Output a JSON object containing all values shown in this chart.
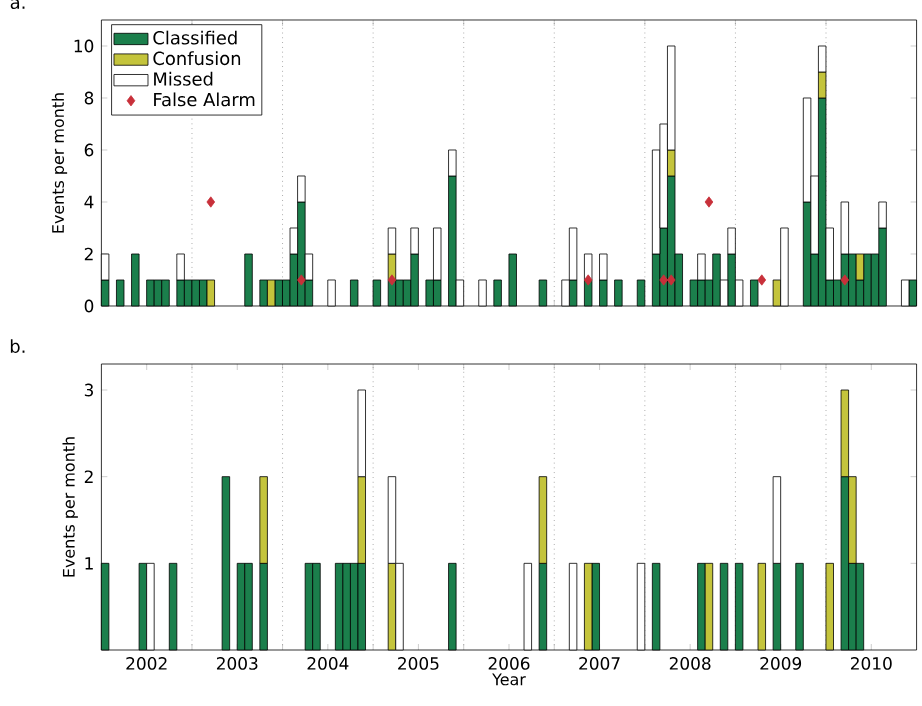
{
  "chart_data": [
    {
      "type": "bar",
      "title": "a.",
      "ylabel": "Events per month",
      "stacked": true,
      "legend": "top left",
      "tick_labels": "y",
      "xlim": [
        "2002-01-01",
        "2011-01-01"
      ],
      "ylim": [
        0,
        11
      ],
      "xticks": [
        {
          "value": "2003-01-01",
          "label": null
        },
        {
          "value": "2004-01-01",
          "label": null
        },
        {
          "value": "2005-01-01",
          "label": null
        },
        {
          "value": "2006-01-01",
          "label": null
        },
        {
          "value": "2007-01-01",
          "label": null
        },
        {
          "value": "2008-01-01",
          "label": null
        },
        {
          "value": "2009-01-01",
          "label": null
        },
        {
          "value": "2010-01-01",
          "label": null
        }
      ],
      "yticks": [
        0,
        2,
        4,
        6,
        8,
        10
      ],
      "ref_lines": [
        {
          "axis": "x",
          "value": "2003-01-01",
          "color": "#808080",
          "line_style": "dotted"
        },
        {
          "axis": "x",
          "value": "2004-01-01",
          "color": "#808080",
          "line_style": "dotted"
        },
        {
          "axis": "x",
          "value": "2005-01-01",
          "color": "#808080",
          "line_style": "dotted"
        },
        {
          "axis": "x",
          "value": "2006-01-01",
          "color": "#808080",
          "line_style": "dotted"
        },
        {
          "axis": "x",
          "value": "2007-01-01",
          "color": "#808080",
          "line_style": "dotted"
        },
        {
          "axis": "x",
          "value": "2008-01-01",
          "color": "#808080",
          "line_style": "dotted"
        },
        {
          "axis": "x",
          "value": "2009-01-01",
          "color": "#808080",
          "line_style": "dotted"
        },
        {
          "axis": "x",
          "value": "2010-01-01",
          "color": "#808080",
          "line_style": "dotted"
        }
      ],
      "x": [
        "2002-01-16",
        "2002-03-16",
        "2002-05-16",
        "2002-07-16",
        "2002-08-16",
        "2002-09-16",
        "2002-11-16",
        "2002-12-16",
        "2003-01-16",
        "2003-02-16",
        "2003-03-16",
        "2003-08-16",
        "2003-10-16",
        "2003-11-16",
        "2003-12-16",
        "2004-01-16",
        "2004-02-16",
        "2004-03-16",
        "2004-04-16",
        "2004-07-16",
        "2004-10-16",
        "2005-01-16",
        "2005-03-16",
        "2005-04-16",
        "2005-05-16",
        "2005-06-16",
        "2005-08-16",
        "2005-09-16",
        "2005-11-16",
        "2005-12-16",
        "2006-03-16",
        "2006-05-16",
        "2006-07-16",
        "2006-11-16",
        "2007-02-16",
        "2007-03-16",
        "2007-05-16",
        "2007-07-16",
        "2007-09-16",
        "2007-12-16",
        "2008-02-16",
        "2008-03-16",
        "2008-04-16",
        "2008-05-16",
        "2008-07-16",
        "2008-08-16",
        "2008-09-16",
        "2008-10-16",
        "2008-11-16",
        "2008-12-16",
        "2009-01-16",
        "2009-03-16",
        "2009-06-16",
        "2009-07-16",
        "2009-10-16",
        "2009-11-16",
        "2009-12-16",
        "2010-01-16",
        "2010-02-16",
        "2010-03-16",
        "2010-04-16",
        "2010-05-16",
        "2010-06-16",
        "2010-07-16",
        "2010-08-16",
        "2010-11-16",
        "2010-12-16"
      ],
      "series": [
        {
          "name": "Classified",
          "color": "#1b7f4c",
          "values": [
            1,
            1,
            2,
            1,
            1,
            1,
            1,
            1,
            1,
            1,
            null,
            2,
            1,
            null,
            1,
            1,
            2,
            4,
            1,
            null,
            1,
            1,
            1,
            1,
            1,
            2,
            1,
            1,
            5,
            null,
            null,
            1,
            2,
            1,
            null,
            1,
            1,
            1,
            1,
            1,
            2,
            3,
            5,
            2,
            1,
            1,
            1,
            2,
            null,
            2,
            null,
            1,
            null,
            null,
            4,
            2,
            8,
            1,
            1,
            2,
            2,
            1,
            2,
            2,
            3,
            null,
            1
          ]
        },
        {
          "name": "Confusion",
          "color": "#c4c43c",
          "values": [
            null,
            null,
            null,
            null,
            null,
            null,
            null,
            null,
            null,
            null,
            1,
            null,
            null,
            1,
            null,
            null,
            null,
            null,
            null,
            null,
            null,
            null,
            1,
            null,
            null,
            null,
            null,
            null,
            null,
            null,
            null,
            null,
            null,
            null,
            null,
            null,
            null,
            null,
            null,
            null,
            null,
            null,
            1,
            null,
            null,
            null,
            null,
            null,
            null,
            null,
            null,
            null,
            1,
            null,
            null,
            null,
            1,
            null,
            null,
            null,
            null,
            1,
            null,
            null,
            null,
            null,
            null
          ]
        },
        {
          "name": "Missed",
          "color": "#ffffff",
          "values": [
            1,
            null,
            null,
            null,
            null,
            null,
            1,
            null,
            null,
            null,
            null,
            null,
            null,
            null,
            null,
            null,
            1,
            1,
            1,
            1,
            null,
            null,
            1,
            null,
            null,
            1,
            null,
            2,
            1,
            1,
            1,
            null,
            null,
            null,
            1,
            2,
            1,
            1,
            null,
            null,
            4,
            4,
            4,
            null,
            null,
            1,
            null,
            null,
            1,
            1,
            1,
            null,
            null,
            3,
            4,
            3,
            1,
            2,
            null,
            2,
            null,
            null,
            null,
            null,
            1,
            1,
            null
          ]
        },
        {
          "name": "False Alarm",
          "type": "scatter",
          "marker": "diamond",
          "color": "#c8303a",
          "x": [
            "2003-03-16",
            "2004-03-16",
            "2005-03-16",
            "2007-05-16",
            "2008-03-16",
            "2008-04-16",
            "2008-09-16",
            "2009-04-16",
            "2010-03-16"
          ],
          "values": [
            4,
            1,
            1,
            1,
            1,
            1,
            4,
            1,
            1
          ]
        }
      ]
    },
    {
      "type": "bar",
      "title": "b.",
      "ylabel": "Events per month",
      "xlabel": "Year",
      "stacked": true,
      "xlim": [
        "2002-01-01",
        "2011-01-01"
      ],
      "ylim": [
        0,
        3.3
      ],
      "xticks": [
        {
          "value": "2002-07-01",
          "label": "2002"
        },
        {
          "value": "2003-07-01",
          "label": "2003"
        },
        {
          "value": "2004-07-01",
          "label": "2004"
        },
        {
          "value": "2005-07-01",
          "label": "2005"
        },
        {
          "value": "2006-07-01",
          "label": "2006"
        },
        {
          "value": "2007-07-01",
          "label": "2007"
        },
        {
          "value": "2008-07-01",
          "label": "2008"
        },
        {
          "value": "2009-07-01",
          "label": "2009"
        },
        {
          "value": "2010-07-01",
          "label": "2010"
        },
        {
          "value": "2003-01-01",
          "label": null
        },
        {
          "value": "2004-01-01",
          "label": null
        },
        {
          "value": "2005-01-01",
          "label": null
        },
        {
          "value": "2006-01-01",
          "label": null
        },
        {
          "value": "2007-01-01",
          "label": null
        },
        {
          "value": "2008-01-01",
          "label": null
        },
        {
          "value": "2009-01-01",
          "label": null
        },
        {
          "value": "2010-01-01",
          "label": null
        }
      ],
      "yticks": [
        1,
        2,
        3
      ],
      "ref_lines": [
        {
          "axis": "x",
          "value": "2003-01-01",
          "color": "#808080",
          "line_style": "dotted"
        },
        {
          "axis": "x",
          "value": "2004-01-01",
          "color": "#808080",
          "line_style": "dotted"
        },
        {
          "axis": "x",
          "value": "2005-01-01",
          "color": "#808080",
          "line_style": "dotted"
        },
        {
          "axis": "x",
          "value": "2006-01-01",
          "color": "#808080",
          "line_style": "dotted"
        },
        {
          "axis": "x",
          "value": "2007-01-01",
          "color": "#808080",
          "line_style": "dotted"
        },
        {
          "axis": "x",
          "value": "2008-01-01",
          "color": "#808080",
          "line_style": "dotted"
        },
        {
          "axis": "x",
          "value": "2009-01-01",
          "color": "#808080",
          "line_style": "dotted"
        },
        {
          "axis": "x",
          "value": "2010-01-01",
          "color": "#808080",
          "line_style": "dotted"
        }
      ],
      "x": [
        "2002-01-16",
        "2002-06-16",
        "2002-07-16",
        "2002-10-16",
        "2003-05-16",
        "2003-07-16",
        "2003-08-16",
        "2003-10-16",
        "2004-04-16",
        "2004-05-16",
        "2004-08-16",
        "2004-09-16",
        "2004-10-16",
        "2004-11-16",
        "2005-03-16",
        "2005-04-16",
        "2005-11-16",
        "2006-09-16",
        "2006-11-16",
        "2007-03-16",
        "2007-05-16",
        "2007-06-16",
        "2007-12-16",
        "2008-02-16",
        "2008-08-16",
        "2008-09-16",
        "2008-11-16",
        "2009-01-16",
        "2009-04-16",
        "2009-06-16",
        "2009-09-16",
        "2010-01-16",
        "2010-03-16",
        "2010-04-16",
        "2010-05-16"
      ],
      "series": [
        {
          "color": "#1b7f4c",
          "values": [
            1,
            1,
            null,
            1,
            2,
            1,
            1,
            1,
            1,
            1,
            1,
            1,
            1,
            1,
            null,
            null,
            1,
            null,
            1,
            null,
            null,
            1,
            null,
            1,
            1,
            null,
            1,
            1,
            null,
            1,
            1,
            null,
            2,
            1,
            1
          ]
        },
        {
          "color": "#c4c43c",
          "values": [
            null,
            null,
            null,
            null,
            null,
            null,
            null,
            1,
            null,
            null,
            null,
            null,
            null,
            1,
            1,
            null,
            null,
            null,
            1,
            null,
            1,
            null,
            null,
            null,
            null,
            1,
            null,
            null,
            1,
            null,
            null,
            1,
            1,
            1,
            null
          ]
        },
        {
          "color": "#ffffff",
          "values": [
            null,
            null,
            1,
            null,
            null,
            null,
            null,
            null,
            null,
            null,
            null,
            null,
            null,
            1,
            1,
            1,
            null,
            1,
            null,
            1,
            null,
            null,
            1,
            null,
            null,
            null,
            null,
            null,
            null,
            1,
            null,
            null,
            null,
            null,
            null
          ]
        }
      ]
    }
  ]
}
